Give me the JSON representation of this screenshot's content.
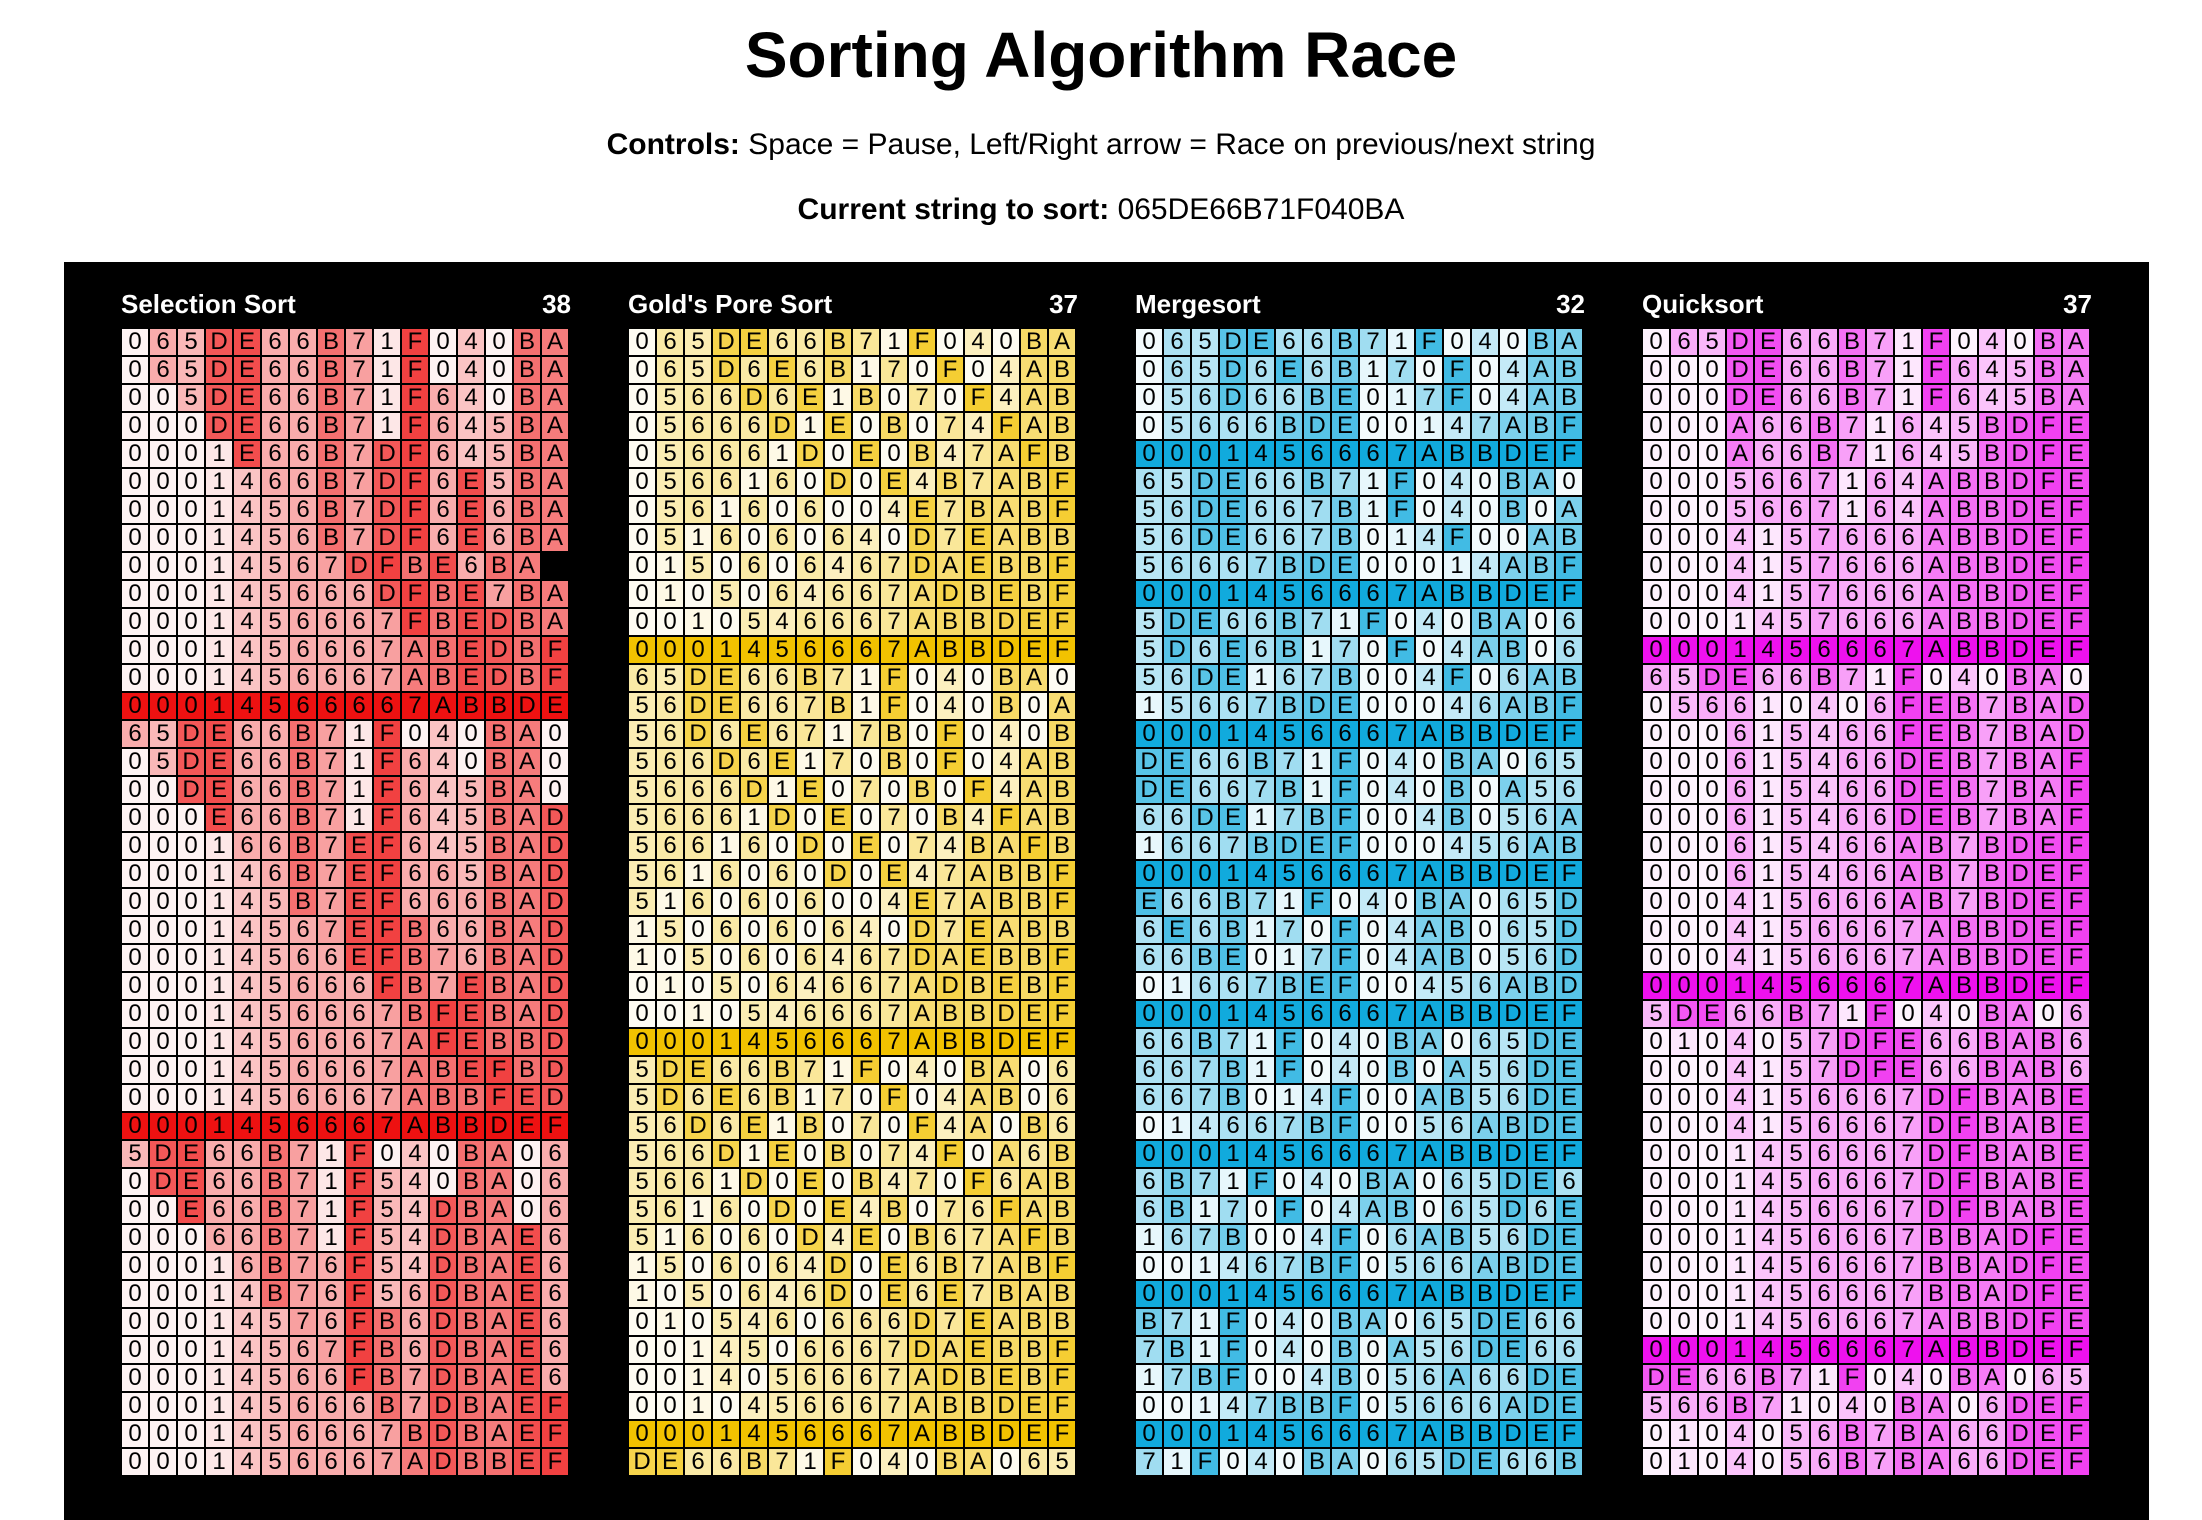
{
  "header": {
    "title": "Sorting Algorithm Race",
    "controls_label": "Controls:",
    "controls_text": "Space = Pause, Left/Right arrow = Race on previous/next string",
    "current_label": "Current string to sort:",
    "current_value": "065DE66B71F040BA"
  },
  "race": {
    "background": "#000000",
    "panels": [
      {
        "name": "Selection Sort",
        "steps": "38",
        "color": "#ee1111",
        "rows": [
          {
            "text": "065DE66B71F040BA",
            "highlight": false
          },
          {
            "text": "065DE66B71F040BA",
            "highlight": false
          },
          {
            "text": "005DE66B71F640BA",
            "highlight": false
          },
          {
            "text": "000DE66B71F645BA",
            "highlight": false
          },
          {
            "text": "0001E66B7DF645BA",
            "highlight": false
          },
          {
            "text": "0001466B7DF6E5BA",
            "highlight": false
          },
          {
            "text": "0001456B7DF6E6BA",
            "highlight": false
          },
          {
            "text": "0001456B7DF6E6BA",
            "highlight": false
          },
          {
            "text": "00014567DFBE6BA",
            "highlight": false
          },
          {
            "text": "000145666DFBE7BA",
            "highlight": false
          },
          {
            "text": "0001456667FBEDBA",
            "highlight": false
          },
          {
            "text": "0001456667ABEDBF",
            "highlight": false
          },
          {
            "text": "0001456667ABEDBF",
            "highlight": false
          },
          {
            "text": "00014566667ABBDEF",
            "highlight": true
          },
          {
            "text": "65DE66B71F040BA0",
            "highlight": false
          },
          {
            "text": "05DE66B71F640BA0",
            "highlight": false
          },
          {
            "text": "00DE66B71F645BA0",
            "highlight": false
          },
          {
            "text": "000E66B71F645BAD",
            "highlight": false
          },
          {
            "text": "000166B7EF645BAD",
            "highlight": false
          },
          {
            "text": "000146B7EF665BAD",
            "highlight": false
          },
          {
            "text": "000145B7EF666BAD",
            "highlight": false
          },
          {
            "text": "00014567EFB66BAD",
            "highlight": false
          },
          {
            "text": "00014566EFB76BAD",
            "highlight": false
          },
          {
            "text": "000145666FB7EBAD",
            "highlight": false
          },
          {
            "text": "0001456667BFEBAD",
            "highlight": false
          },
          {
            "text": "0001456667AFEBBD",
            "highlight": false
          },
          {
            "text": "0001456667ABEFBD",
            "highlight": false
          },
          {
            "text": "0001456667ABBFED",
            "highlight": false
          },
          {
            "text": "0001456667ABBDEF",
            "highlight": true
          },
          {
            "text": "5DE66B71F040BA06",
            "highlight": false
          },
          {
            "text": "0DE66B71F540BA06",
            "highlight": false
          },
          {
            "text": "00E66B71F54DBA06",
            "highlight": false
          },
          {
            "text": "00066B71F54DBAE6",
            "highlight": false
          },
          {
            "text": "00016B76F54DBAE6",
            "highlight": false
          },
          {
            "text": "00014B76F56DBAE6",
            "highlight": false
          },
          {
            "text": "00014576FB6DBAE6",
            "highlight": false
          },
          {
            "text": "00014567FB6DBAE6",
            "highlight": false
          },
          {
            "text": "00014566FB7DBAE6",
            "highlight": false
          },
          {
            "text": "000145666B7DBAEF",
            "highlight": false
          },
          {
            "text": "0001456667BDBAEF",
            "highlight": false
          },
          {
            "text": "0001456667ADBBEF",
            "highlight": false
          }
        ]
      },
      {
        "name": "Gold's Pore Sort",
        "steps": "37",
        "color": "#f2c200",
        "rows": [
          {
            "text": "065DE66B71F040BA",
            "highlight": false
          },
          {
            "text": "065D6E6B170F04AB",
            "highlight": false
          },
          {
            "text": "0566D6E1B070F4AB",
            "highlight": false
          },
          {
            "text": "05666D1E0B074FAB",
            "highlight": false
          },
          {
            "text": "056661D0E0B47AFB",
            "highlight": false
          },
          {
            "text": "0566160D0E4B7ABF",
            "highlight": false
          },
          {
            "text": "0561606004E7BABF",
            "highlight": false
          },
          {
            "text": "0516060640D7EABBF",
            "highlight": false
          },
          {
            "text": "0150606467DAEBBF",
            "highlight": false
          },
          {
            "text": "0105064667ADBEBF",
            "highlight": false
          },
          {
            "text": "0010546667ABBDEF",
            "highlight": false
          },
          {
            "text": "0001456667ABBDEF",
            "highlight": true
          },
          {
            "text": "65DE66B71F040BA0",
            "highlight": false
          },
          {
            "text": "56DE667B1F040B0A",
            "highlight": false
          },
          {
            "text": "56D6E6717B0F040BA",
            "highlight": false
          },
          {
            "text": "566D6E170B0F04AB",
            "highlight": false
          },
          {
            "text": "5666D1E070B0F4AB",
            "highlight": false
          },
          {
            "text": "56661D0E070B4FAB",
            "highlight": false
          },
          {
            "text": "566160D0E074BAFB",
            "highlight": false
          },
          {
            "text": "5616060D0E47ABBF",
            "highlight": false
          },
          {
            "text": "5160606004E7ABBF",
            "highlight": false
          },
          {
            "text": "1506060640D7EABBF",
            "highlight": false
          },
          {
            "text": "1050606467DAEBBF",
            "highlight": false
          },
          {
            "text": "0105064667ADBEBF",
            "highlight": false
          },
          {
            "text": "0010546667ABBDEF",
            "highlight": false
          },
          {
            "text": "0001456667ABBDEF",
            "highlight": true
          },
          {
            "text": "5DE66B71F040BA06",
            "highlight": false
          },
          {
            "text": "5D6E6B170F04AB06",
            "highlight": false
          },
          {
            "text": "56D6E1B070F4A0B6",
            "highlight": false
          },
          {
            "text": "566D1E0B074F0A6B",
            "highlight": false
          },
          {
            "text": "5661D0E0B470F6AB",
            "highlight": false
          },
          {
            "text": "56160D0E4B076FAB",
            "highlight": false
          },
          {
            "text": "516060D4E0B67AFB",
            "highlight": false
          },
          {
            "text": "1506064D0E6B7ABF",
            "highlight": false
          },
          {
            "text": "1050646D0E6E7BABF",
            "highlight": false
          },
          {
            "text": "0105460666D7EABBF",
            "highlight": false
          },
          {
            "text": "0014506667DAEBBF",
            "highlight": false
          },
          {
            "text": "0014056667ADBEBF",
            "highlight": false
          },
          {
            "text": "0010456667ABBDEF",
            "highlight": false
          },
          {
            "text": "0001456667ABBDEF",
            "highlight": true
          },
          {
            "text": "DE66B71F040BA065",
            "highlight": false
          }
        ]
      },
      {
        "name": "Mergesort",
        "steps": "32",
        "color": "#11aadd",
        "rows": [
          {
            "text": "065DE66B71F040BA",
            "highlight": false
          },
          {
            "text": "065D6E6B170F04AB",
            "highlight": false
          },
          {
            "text": "056D66BE017F04AB",
            "highlight": false
          },
          {
            "text": "05666BDE00147ABF",
            "highlight": false
          },
          {
            "text": "0001456667ABBDEF",
            "highlight": true
          },
          {
            "text": "65DE66B71F040BA0",
            "highlight": false
          },
          {
            "text": "56DE667B1F040B0A",
            "highlight": false
          },
          {
            "text": "56DE667B014F00AB",
            "highlight": false
          },
          {
            "text": "56667BDE00014ABF",
            "highlight": false
          },
          {
            "text": "0001456667ABBDEF",
            "highlight": true
          },
          {
            "text": "5DE66B71F040BA06",
            "highlight": false
          },
          {
            "text": "5D6E6B170F04AB06",
            "highlight": false
          },
          {
            "text": "56DE167B004F06AB",
            "highlight": false
          },
          {
            "text": "15667BDE00046ABF",
            "highlight": false
          },
          {
            "text": "0001456667ABBDEF",
            "highlight": true
          },
          {
            "text": "DE66B71F040BA065",
            "highlight": false
          },
          {
            "text": "DE667B1F040B0A56",
            "highlight": false
          },
          {
            "text": "66DE17BF004B056A",
            "highlight": false
          },
          {
            "text": "1667BDEF000456AB",
            "highlight": false
          },
          {
            "text": "0001456667ABBDEF",
            "highlight": true
          },
          {
            "text": "E66B71F040BA065D",
            "highlight": false
          },
          {
            "text": "6E6B170F04AB065D",
            "highlight": false
          },
          {
            "text": "66BE017F04AB056D",
            "highlight": false
          },
          {
            "text": "01667BEF00456ABD",
            "highlight": false
          },
          {
            "text": "0001456667ABBDEF",
            "highlight": true
          },
          {
            "text": "66B71F040BA065DE",
            "highlight": false
          },
          {
            "text": "667B1F040B0A56DE",
            "highlight": false
          },
          {
            "text": "667B014F00AB56DE",
            "highlight": false
          },
          {
            "text": "014667BF0056ABDE",
            "highlight": false
          },
          {
            "text": "0001456667ABBDEF",
            "highlight": true
          },
          {
            "text": "6B71F040BA065DE6",
            "highlight": false
          },
          {
            "text": "6B170F04AB065D6E",
            "highlight": false
          },
          {
            "text": "167B004F06AB56DE",
            "highlight": false
          },
          {
            "text": "001467BF0566ABDE",
            "highlight": false
          },
          {
            "text": "0001456667ABBDEF",
            "highlight": true
          },
          {
            "text": "B71F040BA065DE66",
            "highlight": false
          },
          {
            "text": "7B1F040B0A56DE66",
            "highlight": false
          },
          {
            "text": "17BF004B056A66DE",
            "highlight": false
          },
          {
            "text": "00147BBF05666ADE",
            "highlight": false
          },
          {
            "text": "0001456667ABBDEF",
            "highlight": true
          },
          {
            "text": "71F040BA065DE66B",
            "highlight": false
          }
        ]
      },
      {
        "name": "Quicksort",
        "steps": "37",
        "color": "#ee11ee",
        "rows": [
          {
            "text": "065DE66B71F040BA",
            "highlight": false
          },
          {
            "text": "000DE66B71F645BA",
            "highlight": false
          },
          {
            "text": "000DE66B71F645BA",
            "highlight": false
          },
          {
            "text": "000A66B71645BDFE",
            "highlight": false
          },
          {
            "text": "000A66B71645BDFE",
            "highlight": false
          },
          {
            "text": "00056671 64ABBDFE",
            "highlight": false
          },
          {
            "text": "00056671 64ABBDEF",
            "highlight": false
          },
          {
            "text": "0004157666ABBDEF",
            "highlight": false
          },
          {
            "text": "0004157666ABBDEF",
            "highlight": false
          },
          {
            "text": "0004157666ABBDEF",
            "highlight": false
          },
          {
            "text": "0001457666ABBDEF",
            "highlight": false
          },
          {
            "text": "0001456667ABBDEF",
            "highlight": true
          },
          {
            "text": "65DE66B71F040BA0",
            "highlight": false
          },
          {
            "text": "0566104 06FEB7BAD",
            "highlight": false
          },
          {
            "text": "00061546 6FEB7BAD",
            "highlight": false
          },
          {
            "text": "000615466DEB7BAF",
            "highlight": false
          },
          {
            "text": "000615466DEB7BAF",
            "highlight": false
          },
          {
            "text": "000615466DEB7BAF",
            "highlight": false
          },
          {
            "text": "000615466AB7BDEF",
            "highlight": false
          },
          {
            "text": "000615466AB7BDEF",
            "highlight": false
          },
          {
            "text": "000415666AB7BDEF",
            "highlight": false
          },
          {
            "text": "0004156667ABBDEF",
            "highlight": false
          },
          {
            "text": "0004156667ABBDEF",
            "highlight": false
          },
          {
            "text": "0001456667ABBDEF",
            "highlight": true
          },
          {
            "text": "5DE66B71F040BA06",
            "highlight": false
          },
          {
            "text": "010405 7DFE66BAB6",
            "highlight": false
          },
          {
            "text": "0004157DFE66BAB6",
            "highlight": false
          },
          {
            "text": "0004156667DFBABE",
            "highlight": false
          },
          {
            "text": "0004156667DFBABE",
            "highlight": false
          },
          {
            "text": "0001456667DFBABE",
            "highlight": false
          },
          {
            "text": "0001456667DFBABE",
            "highlight": false
          },
          {
            "text": "0001456667DFBABE",
            "highlight": false
          },
          {
            "text": "0001456667BBADFE",
            "highlight": false
          },
          {
            "text": "0001456667BBADFE",
            "highlight": false
          },
          {
            "text": "0001456667BBADFE",
            "highlight": false
          },
          {
            "text": "0001456667ABBDFE",
            "highlight": false
          },
          {
            "text": "0001456667ABBDEF",
            "highlight": true
          },
          {
            "text": "DE66B71F040BA065",
            "highlight": false
          },
          {
            "text": "566B71040BA06DEF",
            "highlight": false
          },
          {
            "text": "0104056B7BA66DEF",
            "highlight": false
          },
          {
            "text": "010405 6B7BA66DEF",
            "highlight": false
          }
        ]
      }
    ]
  }
}
